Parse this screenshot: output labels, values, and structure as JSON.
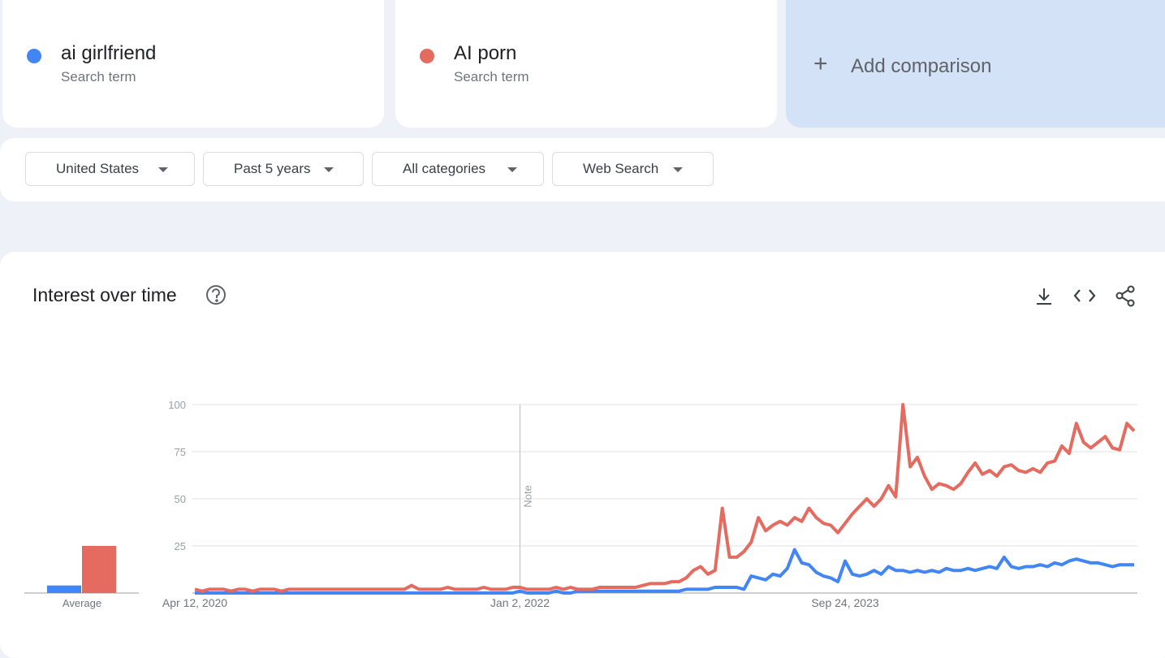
{
  "add_comparison": "Add comparison",
  "filters": [
    "United States",
    "Past 5 years",
    "All categories",
    "Web Search"
  ],
  "chart_data": {
    "type": "line",
    "title": "Interest over time",
    "annotation": "Note",
    "average_label": "Average",
    "ylim": [
      0,
      100
    ],
    "yticks": [
      25,
      50,
      75,
      100
    ],
    "grid": true,
    "categories": [
      "Apr 12, 2020",
      null,
      null,
      null,
      null,
      null,
      null,
      null,
      null,
      null,
      null,
      null,
      null,
      null,
      null,
      null,
      null,
      null,
      null,
      null,
      null,
      null,
      null,
      null,
      null,
      null,
      null,
      null,
      null,
      null,
      null,
      null,
      null,
      null,
      null,
      null,
      null,
      null,
      null,
      null,
      null,
      null,
      null,
      null,
      null,
      "Jan 2, 2022",
      null,
      null,
      null,
      null,
      null,
      null,
      null,
      null,
      null,
      null,
      null,
      null,
      null,
      null,
      null,
      null,
      null,
      null,
      null,
      null,
      null,
      null,
      null,
      null,
      null,
      null,
      null,
      null,
      null,
      null,
      null,
      null,
      null,
      null,
      null,
      null,
      null,
      null,
      null,
      null,
      null,
      null,
      null,
      null,
      "Sep 24, 2023",
      null,
      null,
      null,
      null,
      null,
      null,
      null,
      null,
      null,
      null,
      null,
      null,
      null,
      null,
      null,
      null,
      null,
      null,
      null,
      null,
      null,
      null,
      null,
      null,
      null,
      null,
      null,
      null,
      null,
      null,
      null,
      null,
      null,
      null,
      null,
      null,
      null,
      null,
      null,
      null
    ],
    "series": [
      {
        "name": "ai girlfriend",
        "kind": "Search term",
        "color": "#4285f4",
        "average": 4,
        "values": [
          0,
          0,
          0,
          0,
          0,
          0,
          0,
          0,
          0,
          0,
          0,
          0,
          0,
          0,
          0,
          0,
          0,
          0,
          0,
          0,
          0,
          0,
          0,
          0,
          0,
          0,
          0,
          0,
          0,
          0,
          0,
          0,
          0,
          0,
          0,
          0,
          0,
          0,
          0,
          0,
          0,
          0,
          0,
          0,
          0,
          1,
          0,
          0,
          0,
          0,
          1,
          0,
          0,
          1,
          1,
          1,
          1,
          1,
          1,
          1,
          1,
          1,
          1,
          1,
          1,
          1,
          1,
          1,
          2,
          2,
          2,
          2,
          3,
          3,
          3,
          3,
          2,
          9,
          8,
          7,
          10,
          9,
          13,
          23,
          16,
          15,
          11,
          9,
          8,
          6,
          17,
          10,
          9,
          10,
          12,
          10,
          14,
          12,
          12,
          11,
          12,
          11,
          12,
          11,
          13,
          12,
          12,
          13,
          12,
          13,
          14,
          13,
          19,
          14,
          13,
          14,
          14,
          15,
          14,
          16,
          15,
          17,
          18,
          17,
          16,
          16,
          15,
          14,
          15,
          15,
          15
        ]
      },
      {
        "name": "AI porn",
        "kind": "Search term",
        "color": "#e56a5f",
        "average": 25,
        "values": [
          2,
          1,
          2,
          2,
          2,
          1,
          2,
          2,
          1,
          2,
          2,
          2,
          1,
          2,
          2,
          2,
          2,
          2,
          2,
          2,
          2,
          2,
          2,
          2,
          2,
          2,
          2,
          2,
          2,
          2,
          4,
          2,
          2,
          2,
          2,
          3,
          2,
          2,
          2,
          2,
          3,
          2,
          2,
          2,
          3,
          3,
          2,
          2,
          2,
          2,
          3,
          2,
          3,
          2,
          2,
          2,
          3,
          3,
          3,
          3,
          3,
          3,
          4,
          5,
          5,
          5,
          6,
          6,
          8,
          12,
          14,
          10,
          12,
          45,
          19,
          19,
          22,
          27,
          40,
          33,
          36,
          38,
          36,
          40,
          38,
          45,
          40,
          37,
          36,
          32,
          37,
          42,
          46,
          50,
          46,
          50,
          57,
          51,
          100,
          67,
          72,
          62,
          55,
          58,
          57,
          55,
          58,
          64,
          69,
          63,
          65,
          62,
          67,
          68,
          65,
          64,
          66,
          64,
          69,
          70,
          78,
          74,
          90,
          80,
          77,
          80,
          83,
          77,
          76,
          90,
          86
        ]
      }
    ]
  }
}
